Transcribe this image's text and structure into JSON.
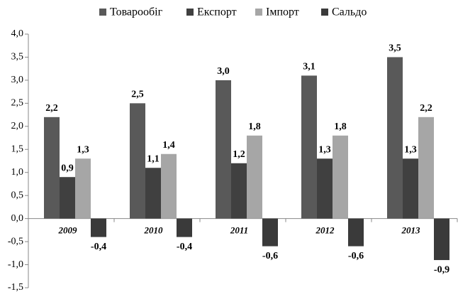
{
  "chart_data": {
    "type": "bar",
    "categories": [
      "2009",
      "2010",
      "2011",
      "2012",
      "2013"
    ],
    "series": [
      {
        "name": "Товарообіг",
        "color": "#595959",
        "values": [
          2.2,
          2.5,
          3.0,
          3.1,
          3.5
        ],
        "value_labels": [
          "2,2",
          "2,5",
          "3,0",
          "3,1",
          "3,5"
        ]
      },
      {
        "name": "Експорт",
        "color": "#404040",
        "values": [
          0.9,
          1.1,
          1.2,
          1.3,
          1.3
        ],
        "value_labels": [
          "0,9",
          "1,1",
          "1,2",
          "1,3",
          "1,3"
        ]
      },
      {
        "name": "Імпорт",
        "color": "#a6a6a6",
        "values": [
          1.3,
          1.4,
          1.8,
          1.8,
          2.2
        ],
        "value_labels": [
          "1,3",
          "1,4",
          "1,8",
          "1,8",
          "2,2"
        ]
      },
      {
        "name": "Сальдо",
        "color": "#3a3a3a",
        "values": [
          -0.4,
          -0.4,
          -0.6,
          -0.6,
          -0.9
        ],
        "value_labels": [
          "-0,4",
          "-0,4",
          "-0,6",
          "-0,6",
          "-0,9"
        ]
      }
    ],
    "ylim": [
      -1.5,
      4.0
    ],
    "yticks": [
      {
        "value": -1.5,
        "label": "-1,5"
      },
      {
        "value": -1.0,
        "label": "-1,0"
      },
      {
        "value": -0.5,
        "label": "-0,5"
      },
      {
        "value": 0,
        "label": "0,0"
      },
      {
        "value": 0.5,
        "label": "0,5"
      },
      {
        "value": 1.0,
        "label": "1,0"
      },
      {
        "value": 1.5,
        "label": "1,5"
      },
      {
        "value": 2.0,
        "label": "2,0"
      },
      {
        "value": 2.5,
        "label": "2,5"
      },
      {
        "value": 3.0,
        "label": "3,0"
      },
      {
        "value": 3.5,
        "label": "3,5"
      },
      {
        "value": 4.0,
        "label": "4,0"
      }
    ],
    "legend": "top",
    "grid": false
  }
}
